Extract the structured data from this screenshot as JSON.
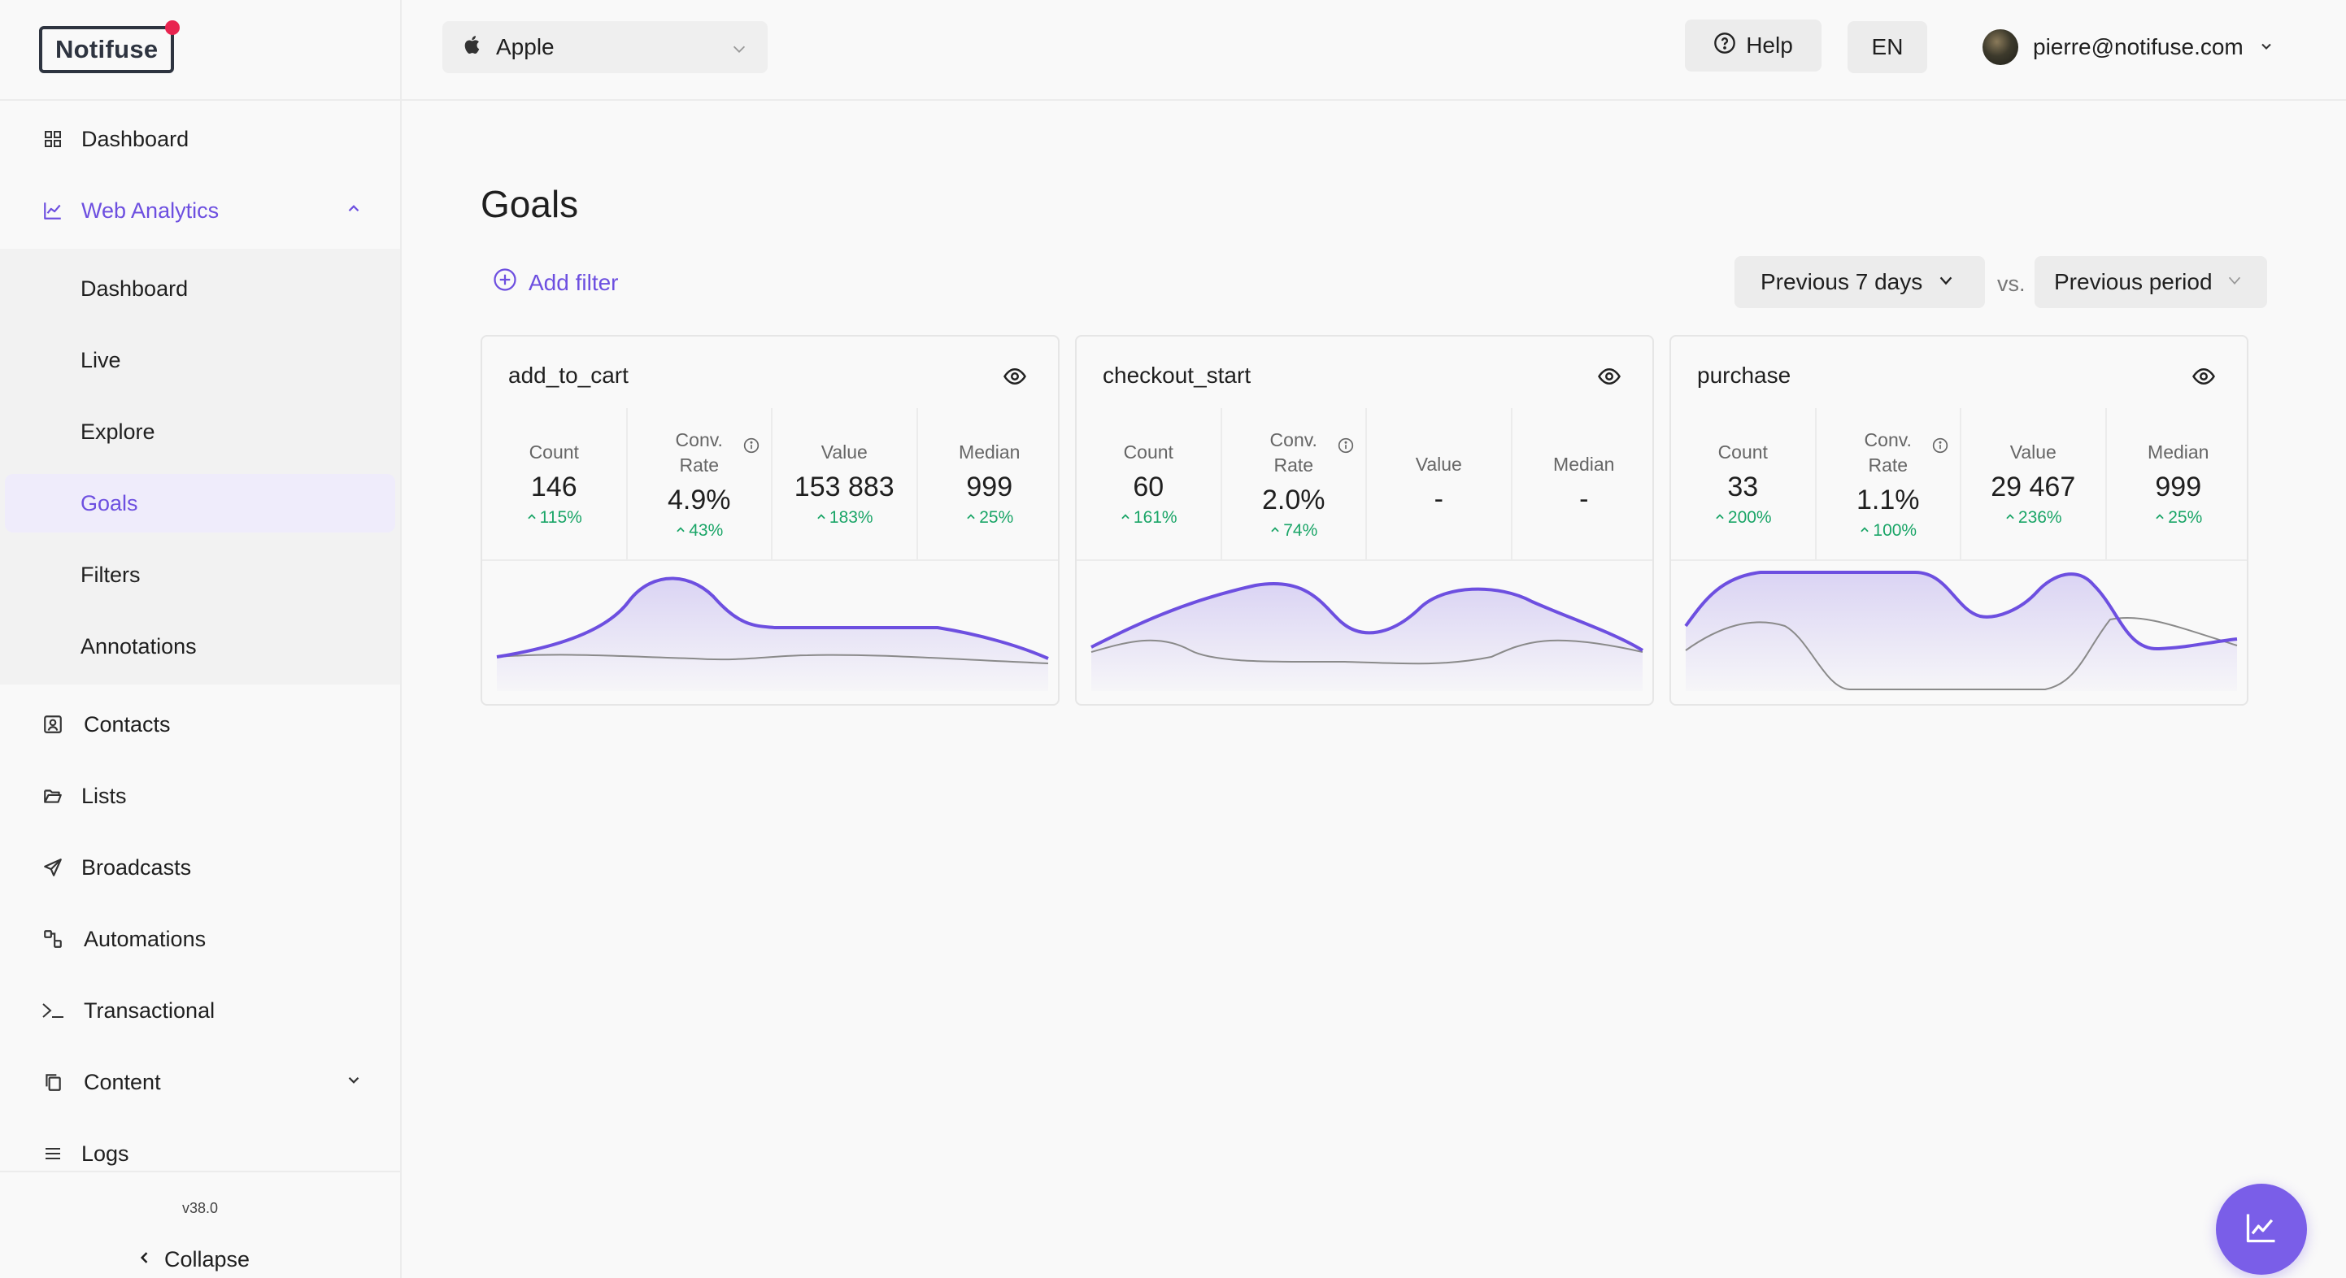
{
  "brand": {
    "logo_text": "Notifuse",
    "accent": "#6d4fe0",
    "notification_dot_color": "#e8244f"
  },
  "sidebar": {
    "items": [
      {
        "label": "Dashboard",
        "icon": "grid-icon"
      },
      {
        "label": "Web Analytics",
        "icon": "line-chart-icon",
        "expanded": true
      },
      {
        "label": "Dashboard",
        "sub": true
      },
      {
        "label": "Live",
        "sub": true
      },
      {
        "label": "Explore",
        "sub": true
      },
      {
        "label": "Goals",
        "sub": true,
        "selected": true
      },
      {
        "label": "Filters",
        "sub": true
      },
      {
        "label": "Annotations",
        "sub": true
      },
      {
        "label": "Contacts",
        "icon": "contact-card-icon"
      },
      {
        "label": "Lists",
        "icon": "folder-open-icon"
      },
      {
        "label": "Broadcasts",
        "icon": "send-icon"
      },
      {
        "label": "Automations",
        "icon": "workflow-icon"
      },
      {
        "label": "Transactional",
        "icon": "terminal-icon"
      },
      {
        "label": "Content",
        "icon": "copy-icon",
        "collapsed": true
      },
      {
        "label": "Logs",
        "icon": "list-icon"
      }
    ],
    "version": "v38.0",
    "collapse_label": "Collapse"
  },
  "topbar": {
    "workspace": "Apple",
    "help_label": "Help",
    "language": "EN",
    "user_email": "pierre@notifuse.com"
  },
  "page": {
    "title": "Goals",
    "add_filter_label": "Add filter",
    "period": "Previous 7 days",
    "vs_label": "vs.",
    "compare": "Previous period"
  },
  "goals": [
    {
      "name": "add_to_cart",
      "metrics": [
        {
          "label": "Count",
          "value": "146",
          "delta": "115%"
        },
        {
          "label": "Conv. Rate",
          "value": "4.9%",
          "delta": "43%"
        },
        {
          "label": "Value",
          "value": "153 883",
          "delta": "183%"
        },
        {
          "label": "Median",
          "value": "999",
          "delta": "25%"
        }
      ]
    },
    {
      "name": "checkout_start",
      "metrics": [
        {
          "label": "Count",
          "value": "60",
          "delta": "161%"
        },
        {
          "label": "Conv. Rate",
          "value": "2.0%",
          "delta": "74%"
        },
        {
          "label": "Value",
          "value": "-"
        },
        {
          "label": "Median",
          "value": "-"
        }
      ]
    },
    {
      "name": "purchase",
      "metrics": [
        {
          "label": "Count",
          "value": "33",
          "delta": "200%"
        },
        {
          "label": "Conv. Rate",
          "value": "1.1%",
          "delta": "100%"
        },
        {
          "label": "Value",
          "value": "29 467",
          "delta": "236%"
        },
        {
          "label": "Median",
          "value": "999",
          "delta": "25%"
        }
      ]
    }
  ],
  "fab": {
    "icon": "analytics-chart-icon"
  }
}
